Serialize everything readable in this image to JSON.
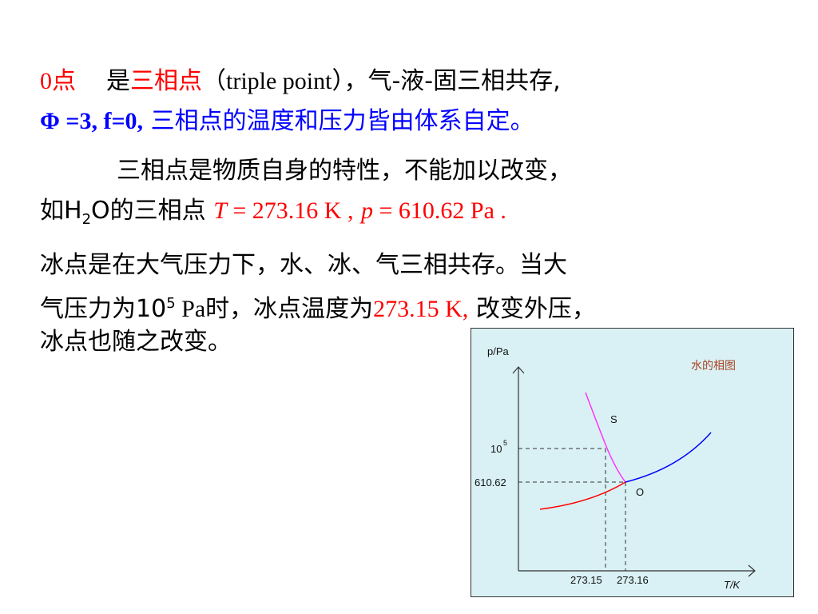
{
  "para1": {
    "point_label": "0点",
    "is": "是",
    "triple_cn": "三相点",
    "triple_en": "（triple point），",
    "coexist": "气-液-固三相共存,",
    "phi": "Φ =3, f=0,",
    "self_determined": "三相点的温度和压力皆由体系自定。"
  },
  "para2": {
    "line1": "三相点是物质自身的特性，不能加以改变，",
    "prefix": "如H",
    "sub2": "2",
    "o_triple": "O的三相点",
    "T_sym": "T",
    "T_eq": " = 273.16 K ,",
    "p_sym": "p",
    "p_eq": " = 610.62 Pa ."
  },
  "para3": {
    "line1": "冰点是在大气压力下，水、冰、气三相共存。当大",
    "line2_a": "气压力为10",
    "line2_sup": "5",
    "line2_b": " Pa时，冰点温度为",
    "ice_temp": "273.15 K,",
    "line2_c": "改变外压，",
    "line3": "冰点也随之改变。"
  },
  "diagram": {
    "title": "水的相图",
    "y_axis_label": "p/Pa",
    "x_axis_label": "T/K",
    "y_tick_high": "10",
    "y_tick_high_sup": "5",
    "y_tick_low": "610.62",
    "x_tick_1": "273.15",
    "x_tick_2": "273.16",
    "label_s": "S",
    "label_o": "O",
    "colors": {
      "background": "#d9f1f5",
      "solid_liquid": "#ff33ff",
      "solid_gas": "#ff0000",
      "liquid_gas": "#0000ff",
      "title": "#aa4422"
    }
  }
}
